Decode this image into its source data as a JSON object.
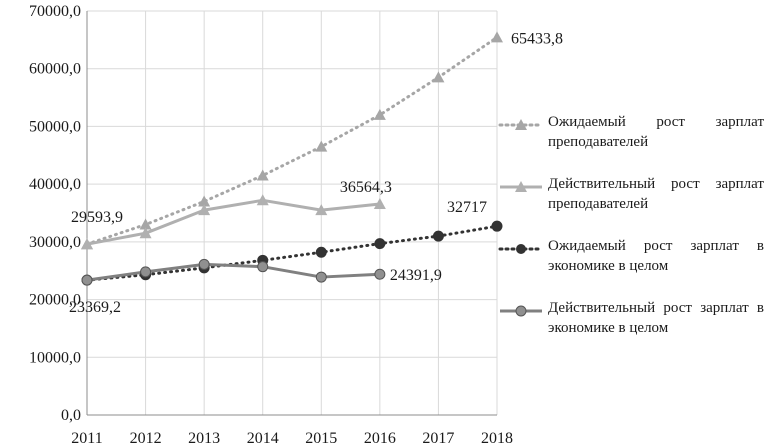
{
  "chart_data": {
    "type": "line",
    "x": [
      2011,
      2012,
      2013,
      2014,
      2015,
      2016,
      2017,
      2018
    ],
    "x_ticks": [
      "2011",
      "2012",
      "2013",
      "2014",
      "2015",
      "2016",
      "2017",
      "2018"
    ],
    "y_ticks": [
      "0,0",
      "10000,0",
      "20000,0",
      "30000,0",
      "40000,0",
      "50000,0",
      "60000,0",
      "70000,0"
    ],
    "ylim": [
      0,
      70000
    ],
    "grid": true,
    "legend_position": "right",
    "series": [
      {
        "name": "Ожидаемый рост зарплат преподавателей",
        "style": "dotted",
        "marker": "triangle",
        "color": "#a6a6a6",
        "values": [
          29593.9,
          33000,
          37000,
          41500,
          46500,
          52000,
          58500,
          65433.8
        ]
      },
      {
        "name": "Действительный рост зарплат преподавателей",
        "style": "solid",
        "marker": "triangle",
        "color": "#b0b0b0",
        "values": [
          29593.9,
          31500,
          35500,
          37200,
          35500,
          36564.3,
          null,
          null
        ]
      },
      {
        "name": "Ожидаемый рост зарплат в экономике в целом",
        "style": "dotted",
        "marker": "circle",
        "color": "#333333",
        "values": [
          23369.2,
          24300,
          25500,
          26800,
          28200,
          29700,
          31000,
          32717
        ]
      },
      {
        "name": "Действительный рост зарплат в экономике в целом",
        "style": "solid",
        "marker": "circle",
        "color": "#808080",
        "values": [
          23369.2,
          24800,
          26100,
          25700,
          23900,
          24391.9,
          null,
          null
        ]
      }
    ],
    "data_labels": [
      {
        "text": "65433,8",
        "x": 2018,
        "y": 65433.8
      },
      {
        "text": "36564,3",
        "x": 2016,
        "y": 36564.3
      },
      {
        "text": "29593,9",
        "x": 2011,
        "y": 29593.9
      },
      {
        "text": "32717",
        "x": 2018,
        "y": 32717
      },
      {
        "text": "24391,9",
        "x": 2016,
        "y": 24391.9
      },
      {
        "text": "23369,2",
        "x": 2011,
        "y": 23369.2
      }
    ]
  }
}
